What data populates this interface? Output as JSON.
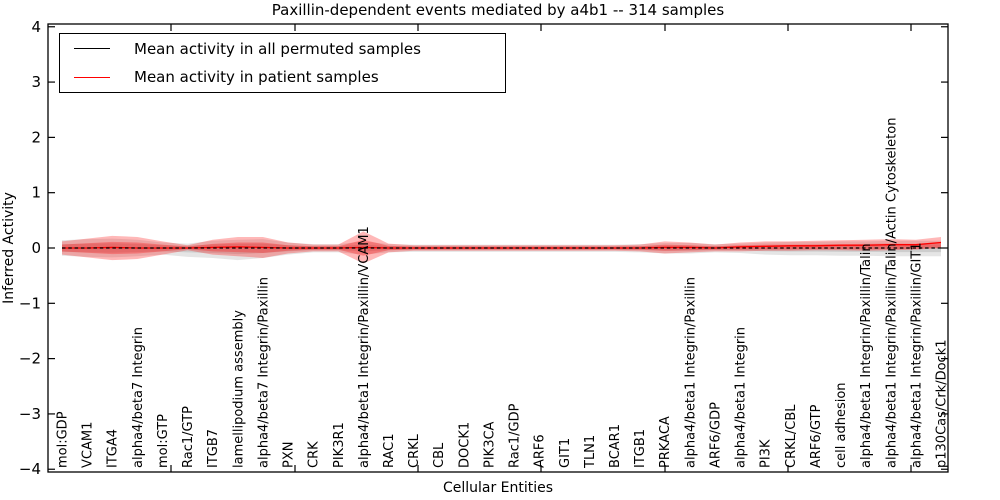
{
  "figure": {
    "title": "Paxillin-dependent events mediated by a4b1 -- 314 samples",
    "xlabel": "Cellular Entities",
    "ylabel": "Inferred Activity"
  },
  "legend": {
    "items": [
      {
        "label": "Mean activity in all permuted samples",
        "color": "#000000"
      },
      {
        "label": "Mean activity in patient samples",
        "color": "#ff0000"
      }
    ]
  },
  "chart_data": {
    "type": "line",
    "title": "Paxillin-dependent events mediated by a4b1 -- 314 samples",
    "xlabel": "Cellular Entities",
    "ylabel": "Inferred Activity",
    "ylim": [
      -4.05,
      4.05
    ],
    "yticks": [
      -4,
      -3,
      -2,
      -1,
      0,
      1,
      2,
      3,
      4
    ],
    "ytick_labels": [
      "−4",
      "−3",
      "−2",
      "−1",
      "0",
      "1",
      "2",
      "3",
      "4"
    ],
    "grid": false,
    "legend_position": "upper left",
    "categories": [
      "mol:GDP",
      "VCAM1",
      "ITGA4",
      "alpha4/beta7 Integrin",
      "mol:GTP",
      "Rac1/GTP",
      "ITGB7",
      "lamellipodium assembly",
      "alpha4/beta7 Integrin/Paxillin",
      "PXN",
      "CRK",
      "PIK3R1",
      "alpha4/beta1 Integrin/Paxillin/VCAM1",
      "RAC1",
      "CRKL",
      "CBL",
      "DOCK1",
      "PIK3CA",
      "Rac1/GDP",
      "ARF6",
      "GIT1",
      "TLN1",
      "BCAR1",
      "ITGB1",
      "PRKACA",
      "alpha4/beta1 Integrin/Paxillin",
      "ARF6/GDP",
      "alpha4/beta1 Integrin",
      "PI3K",
      "CRKL/CBL",
      "ARF6/GTP",
      "cell adhesion",
      "alpha4/beta1 Integrin/Paxillin/Talin",
      "alpha4/beta1 Integrin/Paxillin/Talin/Actin Cytoskeleton",
      "alpha4/beta1 Integrin/Paxillin/GIT1",
      "p130Cas/Crk/Dock1"
    ],
    "series": [
      {
        "name": "Mean activity in all permuted samples",
        "color": "#000000",
        "line_style": "dashed",
        "values": [
          0,
          0,
          0,
          0,
          0,
          0,
          0,
          0,
          0,
          0,
          0,
          0,
          0,
          0,
          0,
          0,
          0,
          0,
          0,
          0,
          0,
          0,
          0,
          0,
          0,
          0,
          0,
          0,
          0,
          0,
          0,
          0,
          0,
          0,
          0,
          0
        ]
      },
      {
        "name": "Mean activity in patient samples",
        "color": "#ff0000",
        "line_style": "solid",
        "values": [
          0,
          0,
          0.01,
          0,
          0,
          0,
          0.01,
          0.02,
          0.01,
          0,
          0,
          0,
          0.01,
          0,
          0,
          0,
          0,
          0,
          0,
          0,
          0,
          0,
          0,
          0,
          0.01,
          0.01,
          0,
          0.02,
          0.03,
          0.04,
          0.04,
          0.05,
          0.05,
          0.06,
          0.06,
          0.1
        ]
      }
    ],
    "bands": [
      {
        "name": "permuted-spread",
        "color": "#000000",
        "alpha": 0.1,
        "hi": [
          0.14,
          0.16,
          0.17,
          0.15,
          0.1,
          0.08,
          0.13,
          0.15,
          0.16,
          0.1,
          0.07,
          0.07,
          0.12,
          0.07,
          0.06,
          0.06,
          0.06,
          0.06,
          0.06,
          0.06,
          0.06,
          0.06,
          0.06,
          0.07,
          0.09,
          0.09,
          0.07,
          0.08,
          0.1,
          0.11,
          0.11,
          0.12,
          0.12,
          0.13,
          0.13,
          0.13
        ],
        "lo": [
          -0.14,
          -0.16,
          -0.17,
          -0.15,
          -0.12,
          -0.16,
          -0.18,
          -0.22,
          -0.18,
          -0.12,
          -0.08,
          -0.08,
          -0.12,
          -0.08,
          -0.07,
          -0.07,
          -0.07,
          -0.07,
          -0.07,
          -0.07,
          -0.07,
          -0.07,
          -0.07,
          -0.08,
          -0.1,
          -0.1,
          -0.08,
          -0.09,
          -0.12,
          -0.13,
          -0.13,
          -0.14,
          -0.14,
          -0.15,
          -0.15,
          -0.15
        ]
      },
      {
        "name": "patient-spread",
        "color": "#ff0000",
        "alpha": 0.28,
        "hi": [
          0.12,
          0.17,
          0.22,
          0.2,
          0.12,
          0.05,
          0.15,
          0.2,
          0.2,
          0.1,
          0.06,
          0.06,
          0.3,
          0.08,
          0.05,
          0.05,
          0.05,
          0.05,
          0.05,
          0.05,
          0.05,
          0.05,
          0.05,
          0.06,
          0.12,
          0.1,
          0.06,
          0.1,
          0.12,
          0.12,
          0.13,
          0.14,
          0.15,
          0.16,
          0.15,
          0.2
        ],
        "lo": [
          -0.12,
          -0.17,
          -0.22,
          -0.2,
          -0.12,
          -0.04,
          -0.12,
          -0.15,
          -0.18,
          -0.1,
          -0.06,
          -0.06,
          -0.28,
          -0.08,
          -0.05,
          -0.05,
          -0.05,
          -0.05,
          -0.05,
          -0.05,
          -0.05,
          -0.05,
          -0.05,
          -0.06,
          -0.1,
          -0.08,
          -0.06,
          -0.06,
          -0.05,
          -0.05,
          -0.04,
          -0.04,
          -0.05,
          -0.04,
          -0.03,
          0.0
        ]
      }
    ],
    "inner_band_scale": 0.5
  }
}
